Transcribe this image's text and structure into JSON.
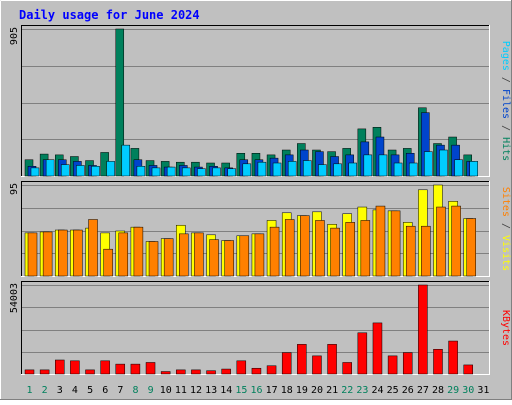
{
  "title": "Daily usage for June 2024",
  "panels": {
    "hits": {
      "max_label": "905",
      "axis_labels": [
        {
          "text": "Pages",
          "color": "#00CCFF"
        },
        {
          "text": " / ",
          "color": "#404040"
        },
        {
          "text": "Files",
          "color": "#0044CC"
        },
        {
          "text": " / ",
          "color": "#404040"
        },
        {
          "text": "Hits",
          "color": "#00805C"
        }
      ]
    },
    "visits": {
      "max_label": "95",
      "axis_labels": [
        {
          "text": "Sites",
          "color": "#FF8000"
        },
        {
          "text": " / ",
          "color": "#404040"
        },
        {
          "text": "Visits",
          "color": "#FFFF00"
        }
      ]
    },
    "kbytes": {
      "max_label": "54003",
      "axis_labels": [
        {
          "text": "KBytes",
          "color": "#FF0000"
        }
      ]
    }
  },
  "colors": {
    "hits": "#00805C",
    "files": "#0044CC",
    "pages": "#00CCFF",
    "visits": "#FFFF00",
    "sites": "#FF8000",
    "kbytes": "#FF0000",
    "title": "#0000FF",
    "weekday": "#000000",
    "weekend": "#00805C",
    "background": "#C0C0C0"
  },
  "chart_data": [
    {
      "type": "bar",
      "title": "Daily usage for June 2024",
      "ylabel": "Pages / Files / Hits",
      "ylim": [
        0,
        905
      ],
      "categories": [
        "1",
        "2",
        "3",
        "4",
        "5",
        "6",
        "7",
        "8",
        "9",
        "10",
        "11",
        "12",
        "13",
        "14",
        "15",
        "16",
        "17",
        "18",
        "19",
        "20",
        "21",
        "22",
        "23",
        "24",
        "25",
        "26",
        "27",
        "28",
        "29",
        "30",
        "31"
      ],
      "weekend_days": [
        "1",
        "2",
        "8",
        "9",
        "15",
        "16",
        "22",
        "23",
        "29",
        "30"
      ],
      "series": [
        {
          "name": "Hits",
          "values": [
            100,
            135,
            130,
            120,
            95,
            145,
            905,
            170,
            95,
            90,
            85,
            85,
            80,
            80,
            140,
            140,
            130,
            160,
            200,
            160,
            150,
            170,
            290,
            300,
            160,
            170,
            420,
            200,
            240,
            130,
            0
          ]
        },
        {
          "name": "Files",
          "values": [
            60,
            100,
            100,
            90,
            65,
            0,
            0,
            100,
            65,
            55,
            65,
            55,
            60,
            50,
            100,
            100,
            110,
            130,
            160,
            150,
            120,
            130,
            210,
            240,
            130,
            140,
            390,
            190,
            190,
            90,
            0
          ]
        },
        {
          "name": "Pages",
          "values": [
            50,
            100,
            70,
            65,
            60,
            90,
            190,
            60,
            50,
            55,
            50,
            45,
            50,
            45,
            75,
            85,
            80,
            90,
            95,
            70,
            75,
            80,
            130,
            130,
            80,
            80,
            150,
            160,
            100,
            90,
            0
          ]
        }
      ]
    },
    {
      "type": "bar",
      "ylim": [
        0,
        95
      ],
      "categories": [
        "1",
        "2",
        "3",
        "4",
        "5",
        "6",
        "7",
        "8",
        "9",
        "10",
        "11",
        "12",
        "13",
        "14",
        "15",
        "16",
        "17",
        "18",
        "19",
        "20",
        "21",
        "22",
        "23",
        "24",
        "25",
        "26",
        "27",
        "28",
        "29",
        "30",
        "31"
      ],
      "series": [
        {
          "name": "Visits",
          "values": [
            45,
            46,
            48,
            48,
            50,
            45,
            47,
            51,
            36,
            39,
            53,
            45,
            43,
            37,
            42,
            44,
            58,
            66,
            63,
            67,
            54,
            65,
            72,
            69,
            68,
            56,
            90,
            95,
            78,
            60,
            0
          ]
        },
        {
          "name": "Sites",
          "values": [
            45,
            46,
            48,
            48,
            59,
            28,
            45,
            51,
            36,
            39,
            44,
            45,
            38,
            37,
            42,
            44,
            51,
            59,
            63,
            58,
            50,
            56,
            58,
            73,
            68,
            52,
            52,
            72,
            73,
            60,
            0
          ]
        }
      ]
    },
    {
      "type": "bar",
      "ylim": [
        0,
        54003
      ],
      "categories": [
        "1",
        "2",
        "3",
        "4",
        "5",
        "6",
        "7",
        "8",
        "9",
        "10",
        "11",
        "12",
        "13",
        "14",
        "15",
        "16",
        "17",
        "18",
        "19",
        "20",
        "21",
        "22",
        "23",
        "24",
        "25",
        "26",
        "27",
        "28",
        "29",
        "30",
        "31"
      ],
      "series": [
        {
          "name": "KBytes",
          "values": [
            2500,
            2500,
            8500,
            8000,
            2500,
            8000,
            6000,
            6000,
            7000,
            1500,
            2500,
            2500,
            2000,
            3000,
            8000,
            3500,
            5000,
            13000,
            18000,
            11000,
            18000,
            7000,
            25000,
            31000,
            11000,
            13000,
            54003,
            15000,
            20000,
            5500,
            0
          ]
        }
      ]
    }
  ]
}
